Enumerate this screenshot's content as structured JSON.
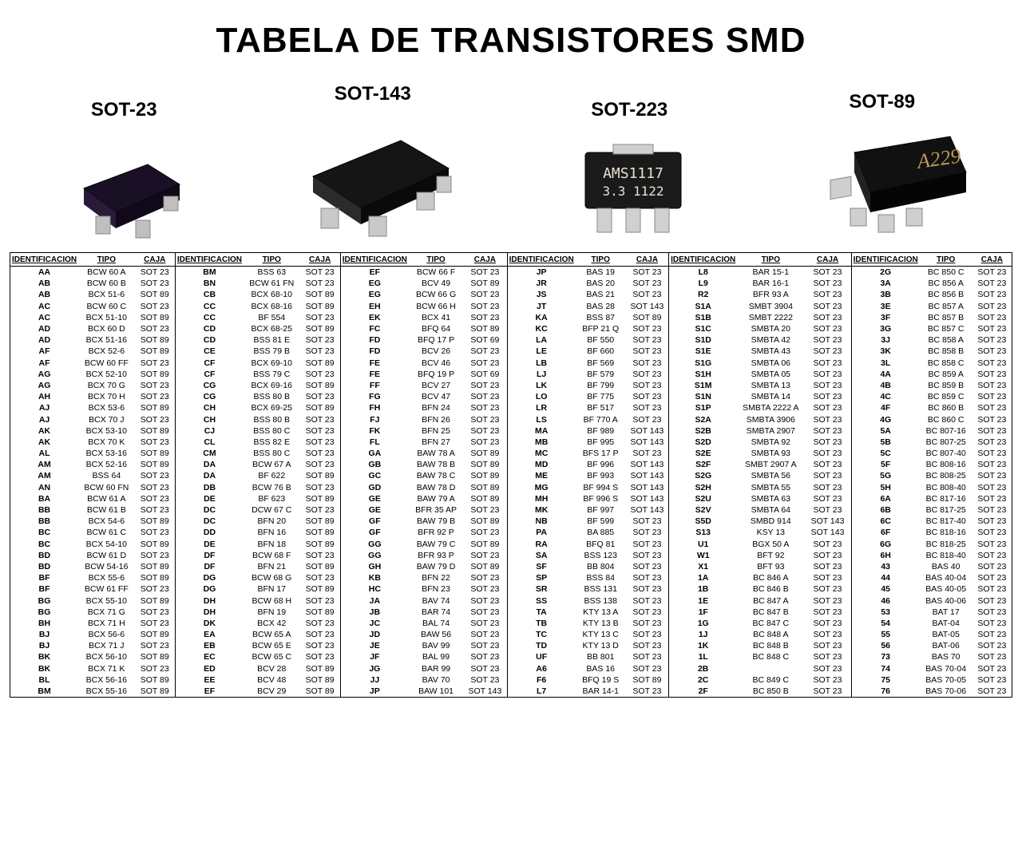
{
  "title": "TABELA DE TRANSISTORES SMD",
  "packages": [
    {
      "label": "SOT-23"
    },
    {
      "label": "SOT-143"
    },
    {
      "label": "SOT-223"
    },
    {
      "label": "SOT-89"
    }
  ],
  "columns": [
    "IDENTIFICACION",
    "TIPO",
    "CAJA"
  ],
  "table_style": {
    "border_color": "#000000",
    "header_fontsize": 10,
    "cell_fontsize": 10.5,
    "font_family": "Arial"
  },
  "groups": [
    [
      [
        "AA",
        "BCW 60 A",
        "SOT 23"
      ],
      [
        "AB",
        "BCW 60 B",
        "SOT 23"
      ],
      [
        "AB",
        "BCX 51-6",
        "SOT 89"
      ],
      [
        "AC",
        "BCW 60 C",
        "SOT 23"
      ],
      [
        "AC",
        "BCX 51-10",
        "SOT 89"
      ],
      [
        "AD",
        "BCX 60 D",
        "SOT 23"
      ],
      [
        "AD",
        "BCX 51-16",
        "SOT 89"
      ],
      [
        "AF",
        "BCX 52-6",
        "SOT 89"
      ],
      [
        "AF",
        "BCW 60 FF",
        "SOT 23"
      ],
      [
        "AG",
        "BCX 52-10",
        "SOT 89"
      ],
      [
        "AG",
        "BCX 70 G",
        "SOT 23"
      ],
      [
        "AH",
        "BCX 70 H",
        "SOT 23"
      ],
      [
        "AJ",
        "BCX 53-6",
        "SOT 89"
      ],
      [
        "AJ",
        "BCX 70 J",
        "SOT 23"
      ],
      [
        "AK",
        "BCX 53-10",
        "SOT 89"
      ],
      [
        "AK",
        "BCX 70 K",
        "SOT 23"
      ],
      [
        "AL",
        "BCX 53-16",
        "SOT 89"
      ],
      [
        "AM",
        "BCX 52-16",
        "SOT 89"
      ],
      [
        "AM",
        "BSS 64",
        "SOT 23"
      ],
      [
        "AN",
        "BCW 60 FN",
        "SOT 23"
      ],
      [
        "BA",
        "BCW 61 A",
        "SOT 23"
      ],
      [
        "BB",
        "BCW 61 B",
        "SOT 23"
      ],
      [
        "BB",
        "BCX 54-6",
        "SOT 89"
      ],
      [
        "BC",
        "BCW 61 C",
        "SOT 23"
      ],
      [
        "BC",
        "BCX 54-10",
        "SOT 89"
      ],
      [
        "BD",
        "BCW 61 D",
        "SOT 23"
      ],
      [
        "BD",
        "BCW 54-16",
        "SOT 89"
      ],
      [
        "BF",
        "BCX 55-6",
        "SOT 89"
      ],
      [
        "BF",
        "BCW 61 FF",
        "SOT 23"
      ],
      [
        "BG",
        "BCX 55-10",
        "SOT 89"
      ],
      [
        "BG",
        "BCX 71 G",
        "SOT 23"
      ],
      [
        "BH",
        "BCX 71 H",
        "SOT 23"
      ],
      [
        "BJ",
        "BCX 56-6",
        "SOT 89"
      ],
      [
        "BJ",
        "BCX 71 J",
        "SOT 23"
      ],
      [
        "BK",
        "BCX 56-10",
        "SOT 89"
      ],
      [
        "BK",
        "BCX 71 K",
        "SOT 23"
      ],
      [
        "BL",
        "BCX 56-16",
        "SOT 89"
      ],
      [
        "BM",
        "BCX 55-16",
        "SOT 89"
      ]
    ],
    [
      [
        "BM",
        "BSS 63",
        "SOT 23"
      ],
      [
        "BN",
        "BCW 61 FN",
        "SOT 23"
      ],
      [
        "CB",
        "BCX 68-10",
        "SOT 89"
      ],
      [
        "CC",
        "BCX 68-16",
        "SOT 89"
      ],
      [
        "CC",
        "BF 554",
        "SOT 23"
      ],
      [
        "CD",
        "BCX 68-25",
        "SOT 89"
      ],
      [
        "CD",
        "BSS 81 E",
        "SOT 23"
      ],
      [
        "CE",
        "BSS 79 B",
        "SOT 23"
      ],
      [
        "CF",
        "BCX 69-10",
        "SOT 89"
      ],
      [
        "CF",
        "BSS 79 C",
        "SOT 23"
      ],
      [
        "CG",
        "BCX 69-16",
        "SOT 89"
      ],
      [
        "CG",
        "BSS 80 B",
        "SOT 23"
      ],
      [
        "CH",
        "BCX 69-25",
        "SOT 89"
      ],
      [
        "CH",
        "BSS 80 B",
        "SOT 23"
      ],
      [
        "CJ",
        "BSS 80 C",
        "SOT 23"
      ],
      [
        "CL",
        "BSS 82 E",
        "SOT 23"
      ],
      [
        "CM",
        "BSS 80 C",
        "SOT 23"
      ],
      [
        "DA",
        "BCW 67 A",
        "SOT 23"
      ],
      [
        "DA",
        "BF 622",
        "SOT 89"
      ],
      [
        "DB",
        "BCW 76 B",
        "SOT 23"
      ],
      [
        "DE",
        "BF 623",
        "SOT 89"
      ],
      [
        "DC",
        "DCW 67 C",
        "SOT 23"
      ],
      [
        "DC",
        "BFN 20",
        "SOT 89"
      ],
      [
        "DD",
        "BFN 16",
        "SOT 89"
      ],
      [
        "DE",
        "BFN 18",
        "SOT 89"
      ],
      [
        "DF",
        "BCW 68 F",
        "SOT 23"
      ],
      [
        "DF",
        "BFN 21",
        "SOT 89"
      ],
      [
        "DG",
        "BCW 68 G",
        "SOT 23"
      ],
      [
        "DG",
        "BFN 17",
        "SOT 89"
      ],
      [
        "DH",
        "BCW 68 H",
        "SOT 23"
      ],
      [
        "DH",
        "BFN 19",
        "SOT 89"
      ],
      [
        "DK",
        "BCX 42",
        "SOT 23"
      ],
      [
        "EA",
        "BCW 65 A",
        "SOT 23"
      ],
      [
        "EB",
        "BCW 65 E",
        "SOT 23"
      ],
      [
        "EC",
        "BCW 65 C",
        "SOT 23"
      ],
      [
        "ED",
        "BCV 28",
        "SOT 89"
      ],
      [
        "EE",
        "BCV 48",
        "SOT 89"
      ],
      [
        "EF",
        "BCV 29",
        "SOT 89"
      ]
    ],
    [
      [
        "EF",
        "BCW 66 F",
        "SOT 23"
      ],
      [
        "EG",
        "BCV 49",
        "SOT 89"
      ],
      [
        "EG",
        "BCW 66 G",
        "SOT 23"
      ],
      [
        "EH",
        "BCW 66 H",
        "SOT 23"
      ],
      [
        "EK",
        "BCX 41",
        "SOT 23"
      ],
      [
        "FC",
        "BFQ 64",
        "SOT 89"
      ],
      [
        "FD",
        "BFQ 17 P",
        "SOT 69"
      ],
      [
        "FD",
        "BCV 26",
        "SOT 23"
      ],
      [
        "FE",
        "BCV 46",
        "SOT 23"
      ],
      [
        "FE",
        "BFQ 19 P",
        "SOT 69"
      ],
      [
        "FF",
        "BCV 27",
        "SOT 23"
      ],
      [
        "FG",
        "BCV 47",
        "SOT 23"
      ],
      [
        "FH",
        "BFN 24",
        "SOT 23"
      ],
      [
        "FJ",
        "BFN 26",
        "SOT 23"
      ],
      [
        "FK",
        "BFN 25",
        "SOT 23"
      ],
      [
        "FL",
        "BFN 27",
        "SOT 23"
      ],
      [
        "GA",
        "BAW 78 A",
        "SOT 89"
      ],
      [
        "GB",
        "BAW 78 B",
        "SOT 89"
      ],
      [
        "GC",
        "BAW 78 C",
        "SOT 89"
      ],
      [
        "GD",
        "BAW 78 D",
        "SOT 89"
      ],
      [
        "GE",
        "BAW 79 A",
        "SOT 89"
      ],
      [
        "GE",
        "BFR 35 AP",
        "SOT 23"
      ],
      [
        "GF",
        "BAW 79 B",
        "SOT 89"
      ],
      [
        "GF",
        "BFR 92 P",
        "SOT 23"
      ],
      [
        "GG",
        "BAW 79 C",
        "SOT 89"
      ],
      [
        "GG",
        "BFR 93 P",
        "SOT 23"
      ],
      [
        "GH",
        "BAW 79 D",
        "SOT 89"
      ],
      [
        "KB",
        "BFN 22",
        "SOT 23"
      ],
      [
        "HC",
        "BFN 23",
        "SOT 23"
      ],
      [
        "JA",
        "BAV 74",
        "SOT 23"
      ],
      [
        "JB",
        "BAR 74",
        "SOT 23"
      ],
      [
        "JC",
        "BAL 74",
        "SOT 23"
      ],
      [
        "JD",
        "BAW 56",
        "SOT 23"
      ],
      [
        "JE",
        "BAV 99",
        "SOT 23"
      ],
      [
        "JF",
        "BAL 99",
        "SOT 23"
      ],
      [
        "JG",
        "BAR 99",
        "SOT 23"
      ],
      [
        "JJ",
        "BAV 70",
        "SOT 23"
      ],
      [
        "JP",
        "BAW 101",
        "SOT 143"
      ]
    ],
    [
      [
        "JP",
        "BAS 19",
        "SOT 23"
      ],
      [
        "JR",
        "BAS 20",
        "SOT 23"
      ],
      [
        "JS",
        "BAS 21",
        "SOT 23"
      ],
      [
        "JT",
        "BAS 28",
        "SOT 143"
      ],
      [
        "KA",
        "BSS 87",
        "SOT 89"
      ],
      [
        "KC",
        "BFP 21 Q",
        "SOT 23"
      ],
      [
        "LA",
        "BF 550",
        "SOT 23"
      ],
      [
        "LE",
        "BF 660",
        "SOT 23"
      ],
      [
        "LB",
        "BF 569",
        "SOT 23"
      ],
      [
        "LJ",
        "BF 579",
        "SOT 23"
      ],
      [
        "LK",
        "BF 799",
        "SOT 23"
      ],
      [
        "LO",
        "BF 775",
        "SOT 23"
      ],
      [
        "LR",
        "BF 517",
        "SOT 23"
      ],
      [
        "LS",
        "BF 770 A",
        "SOT 23"
      ],
      [
        "MA",
        "BF 989",
        "SOT 143"
      ],
      [
        "MB",
        "BF 995",
        "SOT 143"
      ],
      [
        "MC",
        "BFS 17 P",
        "SOT 23"
      ],
      [
        "MD",
        "BF 996",
        "SOT 143"
      ],
      [
        "ME",
        "BF 993",
        "SOT 143"
      ],
      [
        "MG",
        "BF 994 S",
        "SOT 143"
      ],
      [
        "MH",
        "BF 996 S",
        "SOT 143"
      ],
      [
        "MK",
        "BF 997",
        "SOT 143"
      ],
      [
        "NB",
        "BF 599",
        "SOT 23"
      ],
      [
        "PA",
        "BA 885",
        "SOT 23"
      ],
      [
        "RA",
        "BFQ 81",
        "SOT 23"
      ],
      [
        "SA",
        "BSS 123",
        "SOT 23"
      ],
      [
        "SF",
        "BB 804",
        "SOT 23"
      ],
      [
        "SP",
        "BSS 84",
        "SOT 23"
      ],
      [
        "SR",
        "BSS 131",
        "SOT 23"
      ],
      [
        "SS",
        "BSS 138",
        "SOT 23"
      ],
      [
        "TA",
        "KTY 13 A",
        "SOT 23"
      ],
      [
        "TB",
        "KTY 13 B",
        "SOT 23"
      ],
      [
        "TC",
        "KTY 13 C",
        "SOT 23"
      ],
      [
        "TD",
        "KTY 13 D",
        "SOT 23"
      ],
      [
        "UF",
        "BB 801",
        "SOT 23"
      ],
      [
        "A6",
        "BAS 16",
        "SOT 23"
      ],
      [
        "F6",
        "BFQ 19 S",
        "SOT 89"
      ],
      [
        "L7",
        "BAR 14-1",
        "SOT 23"
      ]
    ],
    [
      [
        "L8",
        "BAR 15-1",
        "SOT 23"
      ],
      [
        "L9",
        "BAR 16-1",
        "SOT 23"
      ],
      [
        "R2",
        "BFR 93 A",
        "SOT 23"
      ],
      [
        "S1A",
        "SMBT 3904",
        "SOT 23"
      ],
      [
        "S1B",
        "SMBT 2222",
        "SOT 23"
      ],
      [
        "S1C",
        "SMBTA 20",
        "SOT 23"
      ],
      [
        "S1D",
        "SMBTA 42",
        "SOT 23"
      ],
      [
        "S1E",
        "SMBTA 43",
        "SOT 23"
      ],
      [
        "S1G",
        "SMBTA 06",
        "SOT 23"
      ],
      [
        "S1H",
        "SMBTA 05",
        "SOT 23"
      ],
      [
        "S1M",
        "SMBTA 13",
        "SOT 23"
      ],
      [
        "S1N",
        "SMBTA 14",
        "SOT 23"
      ],
      [
        "S1P",
        "SMBTA 2222 A",
        "SOT 23"
      ],
      [
        "S2A",
        "SMBTA 3906",
        "SOT 23"
      ],
      [
        "S2B",
        "SMBTA 2907",
        "SOT 23"
      ],
      [
        "S2D",
        "SMBTA 92",
        "SOT 23"
      ],
      [
        "S2E",
        "SMBTA 93",
        "SOT 23"
      ],
      [
        "S2F",
        "SMBT 2907 A",
        "SOT 23"
      ],
      [
        "S2G",
        "SMBTA 56",
        "SOT 23"
      ],
      [
        "S2H",
        "SMBTA 55",
        "SOT 23"
      ],
      [
        "S2U",
        "SMBTA 63",
        "SOT 23"
      ],
      [
        "S2V",
        "SMBTA 64",
        "SOT 23"
      ],
      [
        "S5D",
        "SMBD 914",
        "SOT 143"
      ],
      [
        "S13",
        "KSY 13",
        "SOT 143"
      ],
      [
        "U1",
        "BGX 50 A",
        "SOT 23"
      ],
      [
        "W1",
        "BFT 92",
        "SOT 23"
      ],
      [
        "X1",
        "BFT 93",
        "SOT 23"
      ],
      [
        "1A",
        "BC 846 A",
        "SOT 23"
      ],
      [
        "1B",
        "BC 846 B",
        "SOT 23"
      ],
      [
        "1E",
        "BC 847 A",
        "SOT 23"
      ],
      [
        "1F",
        "BC 847 B",
        "SOT 23"
      ],
      [
        "1G",
        "BC 847 C",
        "SOT 23"
      ],
      [
        "1J",
        "BC 848 A",
        "SOT 23"
      ],
      [
        "1K",
        "BC 848 B",
        "SOT 23"
      ],
      [
        "1L",
        "BC 848 C",
        "SOT 23"
      ],
      [
        "2B",
        "",
        "SOT 23"
      ],
      [
        "2C",
        "BC 849 C",
        "SOT 23"
      ],
      [
        "2F",
        "BC 850 B",
        "SOT 23"
      ]
    ],
    [
      [
        "2G",
        "BC 850 C",
        "SOT 23"
      ],
      [
        "3A",
        "BC 856 A",
        "SOT 23"
      ],
      [
        "3B",
        "BC 856 B",
        "SOT 23"
      ],
      [
        "3E",
        "BC 857 A",
        "SOT 23"
      ],
      [
        "3F",
        "BC 857 B",
        "SOT 23"
      ],
      [
        "3G",
        "BC 857 C",
        "SOT 23"
      ],
      [
        "3J",
        "BC 858 A",
        "SOT 23"
      ],
      [
        "3K",
        "BC 858 B",
        "SOT 23"
      ],
      [
        "3L",
        "BC 858 C",
        "SOT 23"
      ],
      [
        "4A",
        "BC 859 A",
        "SOT 23"
      ],
      [
        "4B",
        "BC 859 B",
        "SOT 23"
      ],
      [
        "4C",
        "BC 859 C",
        "SOT 23"
      ],
      [
        "4F",
        "BC 860 B",
        "SOT 23"
      ],
      [
        "4G",
        "BC 860 C",
        "SOT 23"
      ],
      [
        "5A",
        "BC 807-16",
        "SOT 23"
      ],
      [
        "5B",
        "BC 807-25",
        "SOT 23"
      ],
      [
        "5C",
        "BC 807-40",
        "SOT 23"
      ],
      [
        "5F",
        "BC 808-16",
        "SOT 23"
      ],
      [
        "5G",
        "BC 808-25",
        "SOT 23"
      ],
      [
        "5H",
        "BC 808-40",
        "SOT 23"
      ],
      [
        "6A",
        "BC 817-16",
        "SOT 23"
      ],
      [
        "6B",
        "BC 817-25",
        "SOT 23"
      ],
      [
        "6C",
        "BC 817-40",
        "SOT 23"
      ],
      [
        "6F",
        "BC 818-16",
        "SOT 23"
      ],
      [
        "6G",
        "BC 818-25",
        "SOT 23"
      ],
      [
        "6H",
        "BC 818-40",
        "SOT 23"
      ],
      [
        "43",
        "BAS 40",
        "SOT 23"
      ],
      [
        "44",
        "BAS 40-04",
        "SOT 23"
      ],
      [
        "45",
        "BAS 40-05",
        "SOT 23"
      ],
      [
        "46",
        "BAS 40-06",
        "SOT 23"
      ],
      [
        "53",
        "BAT 17",
        "SOT 23"
      ],
      [
        "54",
        "BAT-04",
        "SOT 23"
      ],
      [
        "55",
        "BAT-05",
        "SOT 23"
      ],
      [
        "56",
        "BAT-06",
        "SOT 23"
      ],
      [
        "73",
        "BAS 70",
        "SOT 23"
      ],
      [
        "74",
        "BAS 70-04",
        "SOT 23"
      ],
      [
        "75",
        "BAS 70-05",
        "SOT 23"
      ],
      [
        "76",
        "BAS 70-06",
        "SOT 23"
      ]
    ]
  ]
}
